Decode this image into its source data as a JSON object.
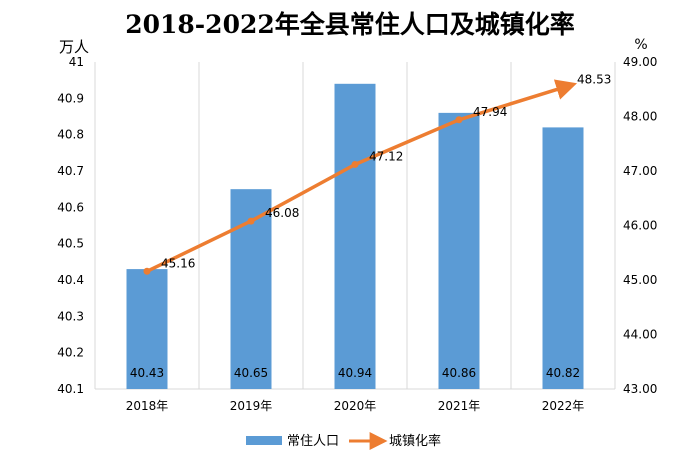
{
  "chart_data": {
    "type": "bar",
    "title": "2018-2022年全县常住人口及城镇化率",
    "categories": [
      "2018年",
      "2019年",
      "2020年",
      "2021年",
      "2022年"
    ],
    "left_unit": "万人",
    "right_unit": "%",
    "yleft": {
      "min": 40.1,
      "max": 41,
      "step": 0.1,
      "ticks": [
        "40.1",
        "40.2",
        "40.3",
        "40.4",
        "40.5",
        "40.6",
        "40.7",
        "40.8",
        "40.9",
        "41"
      ]
    },
    "yright": {
      "min": 43,
      "max": 49,
      "step": 1,
      "ticks": [
        "43.00",
        "44.00",
        "45.00",
        "46.00",
        "47.00",
        "48.00",
        "49.00"
      ]
    },
    "grid": "vertical-category-lines",
    "legend_position": "bottom-center",
    "series": [
      {
        "name": "常住人口",
        "type": "bar",
        "axis": "left",
        "color": "#5b9bd5",
        "values": [
          40.43,
          40.65,
          40.94,
          40.86,
          40.82
        ],
        "labels": [
          "40.43",
          "40.65",
          "40.94",
          "40.86",
          "40.82"
        ]
      },
      {
        "name": "城镇化率",
        "type": "line",
        "axis": "right",
        "color": "#ed7d31",
        "values": [
          45.16,
          46.08,
          47.12,
          47.94,
          48.53
        ],
        "labels": [
          "45.16",
          "46.08",
          "47.12",
          "47.94",
          "48.53"
        ]
      }
    ]
  }
}
